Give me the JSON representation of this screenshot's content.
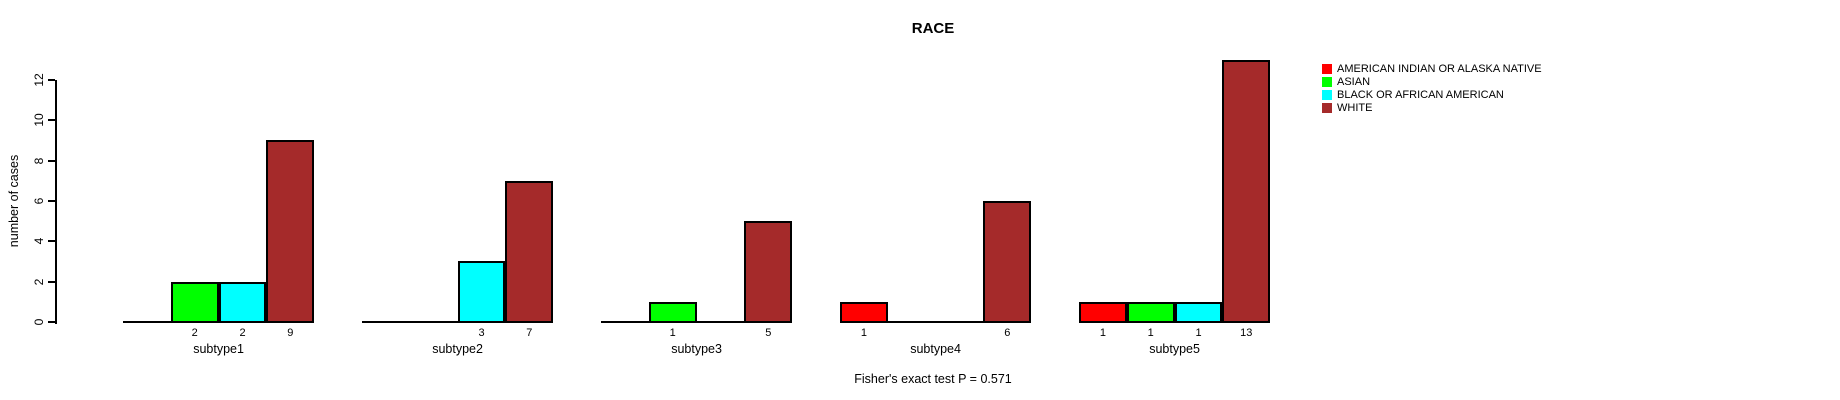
{
  "header": {
    "title": "RACE"
  },
  "footer": {
    "caption": "Fisher's exact test P = 0.571"
  },
  "chart_data": {
    "type": "bar",
    "title": "RACE",
    "xlabel": "",
    "ylabel": "number of cases",
    "categories": [
      "subtype1",
      "subtype2",
      "subtype3",
      "subtype4",
      "subtype5"
    ],
    "series": [
      {
        "name": "AMERICAN INDIAN OR ALASKA NATIVE",
        "color": "#FF0000",
        "values": [
          0,
          0,
          0,
          1,
          1
        ]
      },
      {
        "name": "ASIAN",
        "color": "#00FF00",
        "values": [
          2,
          0,
          1,
          0,
          1
        ]
      },
      {
        "name": "BLACK OR AFRICAN AMERICAN",
        "color": "#00FFFF",
        "values": [
          2,
          3,
          0,
          0,
          1
        ]
      },
      {
        "name": "WHITE",
        "color": "#A52A2A",
        "values": [
          9,
          7,
          5,
          6,
          13
        ]
      }
    ],
    "bar_value_labels": {
      "subtype1": [
        "2",
        "2",
        "9"
      ],
      "subtype2": [
        "3",
        "7"
      ],
      "subtype3": [
        "1",
        "5"
      ],
      "subtype4": [
        "1",
        "6"
      ],
      "subtype5": [
        "1",
        "1",
        "1",
        "13"
      ]
    },
    "yticks": [
      "0",
      "2",
      "4",
      "6",
      "8",
      "10",
      "12"
    ],
    "ylim": [
      0,
      12
    ],
    "grid": false,
    "legend_position": "right",
    "annotation": "Fisher's exact test P = 0.571",
    "axis_color": "#000000",
    "background_color": "#FFFFFF"
  }
}
